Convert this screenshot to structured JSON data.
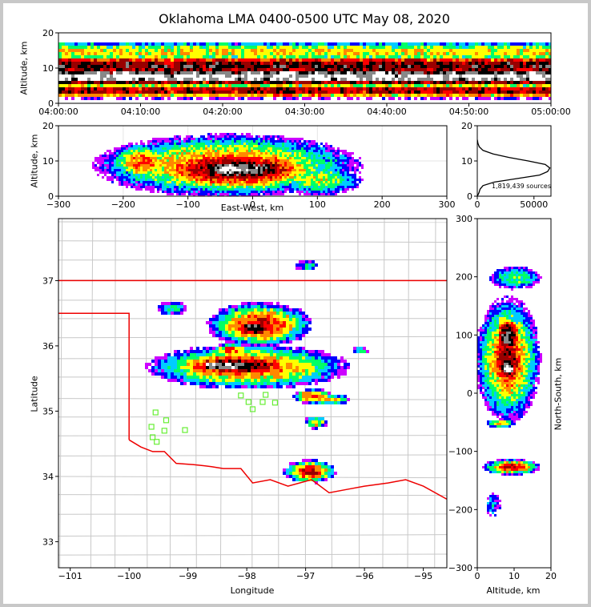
{
  "title": "Oklahoma LMA 0400-0500 UTC May 08, 2020",
  "colors": {
    "state_line": "#ee0000",
    "county_line": "#c8c8c8",
    "station": "#66ee33",
    "density": [
      "#cc00ff",
      "#0000ff",
      "#00ccff",
      "#00ff66",
      "#ffff00",
      "#ff8800",
      "#ff0000",
      "#990000",
      "#000000",
      "#888888",
      "#ffffff"
    ]
  },
  "chart_data": [
    {
      "type": "heatmap",
      "panel": "altitude-time",
      "xlabel": "",
      "ylabel": "Altitude, km",
      "x_ticks": [
        "04:00:00",
        "04:10:00",
        "04:20:00",
        "04:30:00",
        "04:40:00",
        "04:50:00",
        "05:00:00"
      ],
      "y_ticks": [
        0,
        10,
        20
      ],
      "ylim": [
        0,
        20
      ]
    },
    {
      "type": "heatmap",
      "panel": "altitude-east-west",
      "xlabel": "East-West, km",
      "ylabel": "Altitude, km",
      "x_ticks": [
        -300,
        -200,
        -100,
        0,
        100,
        200,
        300
      ],
      "y_ticks": [
        0,
        10,
        20
      ],
      "xlim": [
        -300,
        300
      ],
      "ylim": [
        0,
        20
      ],
      "grid": true
    },
    {
      "type": "line",
      "panel": "altitude-histogram",
      "x_ticks": [
        0,
        50000
      ],
      "y_ticks": [
        0,
        10,
        20
      ],
      "xlim": [
        0,
        65000
      ],
      "ylim": [
        0,
        20
      ],
      "annotation": "1,819,439 sources",
      "x": [
        0,
        800,
        1500,
        2500,
        5000,
        15000,
        35000,
        55000,
        62000,
        64000,
        60000,
        45000,
        28000,
        14000,
        5000,
        1800,
        600,
        100
      ],
      "y": [
        0,
        0.5,
        1,
        2,
        3,
        4,
        5,
        6,
        7,
        8,
        9,
        10,
        11,
        12,
        13,
        14,
        15,
        16
      ]
    },
    {
      "type": "heatmap",
      "panel": "plan-view",
      "xlabel": "Longitude",
      "ylabel": "Latitude",
      "x_ticks": [
        -101,
        -100,
        -99,
        -98,
        -97,
        -96,
        -95
      ],
      "y_ticks": [
        33,
        34,
        35,
        36,
        37
      ],
      "xlim": [
        -101.2,
        -94.6
      ],
      "ylim": [
        32.6,
        37.95
      ]
    },
    {
      "type": "heatmap",
      "panel": "north-south-altitude",
      "xlabel": "Altitude, km",
      "ylabel": "North-South, km",
      "x_ticks": [
        0,
        10,
        20
      ],
      "y_ticks": [
        -300,
        -200,
        -100,
        0,
        100,
        200,
        300
      ],
      "xlim": [
        0,
        20
      ],
      "ylim": [
        -300,
        300
      ]
    }
  ],
  "stations": [
    [
      -99.55,
      34.98
    ],
    [
      -99.37,
      34.86
    ],
    [
      -99.62,
      34.76
    ],
    [
      -99.4,
      34.7
    ],
    [
      -99.05,
      34.71
    ],
    [
      -99.6,
      34.6
    ],
    [
      -99.53,
      34.53
    ],
    [
      -98.1,
      35.24
    ],
    [
      -97.97,
      35.14
    ],
    [
      -97.9,
      35.03
    ],
    [
      -97.73,
      35.14
    ],
    [
      -97.68,
      35.25
    ],
    [
      -97.52,
      35.13
    ]
  ]
}
